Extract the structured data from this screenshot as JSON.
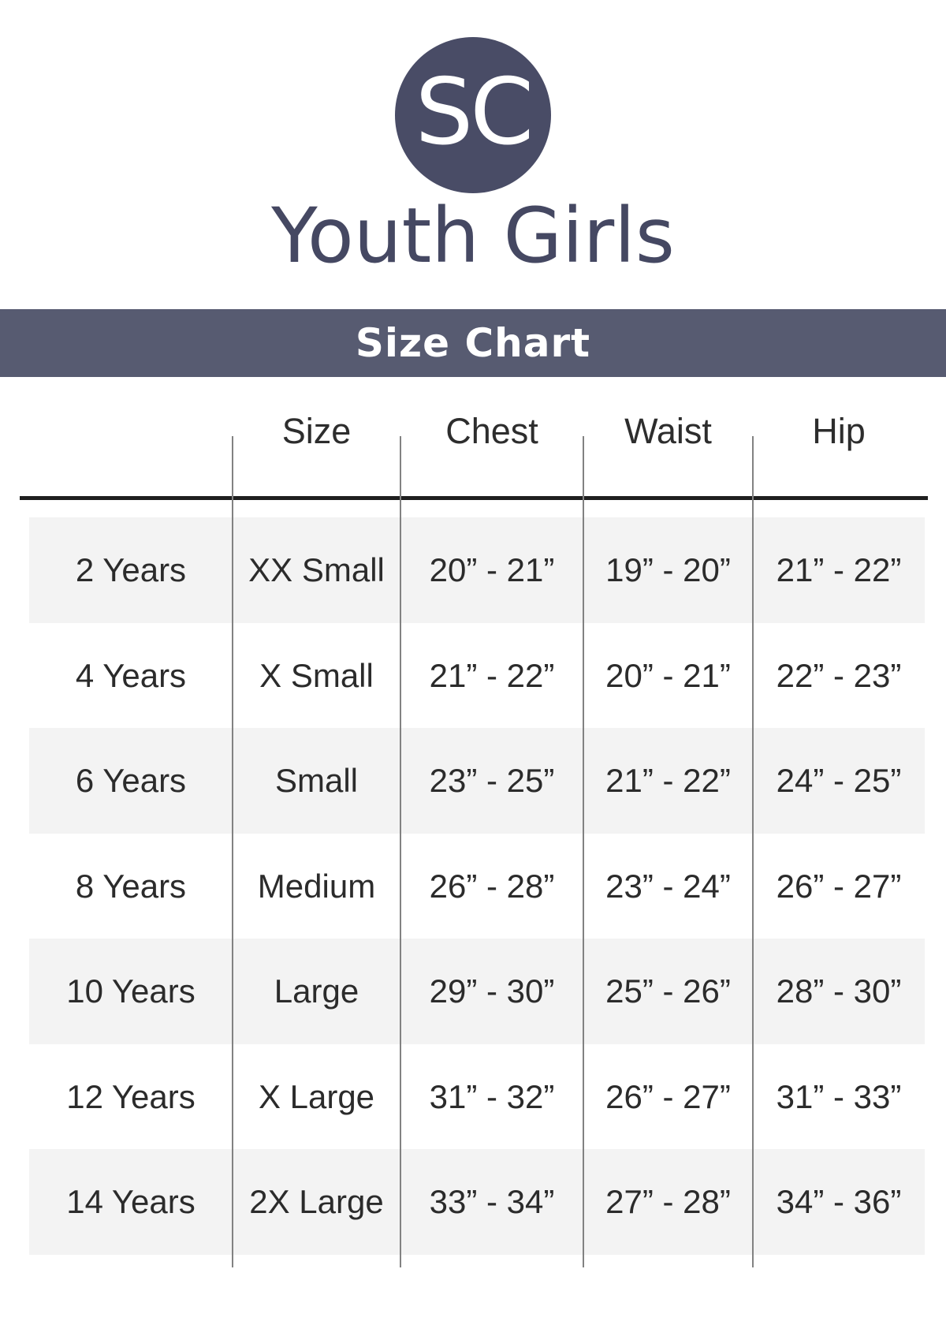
{
  "logo": {
    "text": "SC"
  },
  "colors": {
    "logo_navy": "#494c66",
    "title_navy": "#454862",
    "banner_bg": "#575b71",
    "banner_text": "#ffffff",
    "row_stripe": "#f3f3f3",
    "table_text": "#2b2b2b"
  },
  "chart_data": {
    "type": "table",
    "title": "Youth Girls",
    "subtitle": "Size Chart",
    "columns": [
      "",
      "Size",
      "Chest",
      "Waist",
      "Hip"
    ],
    "rows": [
      [
        "2 Years",
        "XX Small",
        "20” - 21”",
        "19” - 20”",
        "21” - 22”"
      ],
      [
        "4 Years",
        "X Small",
        "21” - 22”",
        "20” - 21”",
        "22” - 23”"
      ],
      [
        "6 Years",
        "Small",
        "23” - 25”",
        "21” - 22”",
        "24” - 25”"
      ],
      [
        "8 Years",
        "Medium",
        "26” - 28”",
        "23” - 24”",
        "26” - 27”"
      ],
      [
        "10 Years",
        "Large",
        "29” - 30”",
        "25” - 26”",
        "28” - 30”"
      ],
      [
        "12 Years",
        "X Large",
        "31” - 32”",
        "26” - 27”",
        "31” - 33”"
      ],
      [
        "14 Years",
        "2X Large",
        "33” - 34”",
        "27” - 28”",
        "34” - 36”"
      ]
    ]
  }
}
